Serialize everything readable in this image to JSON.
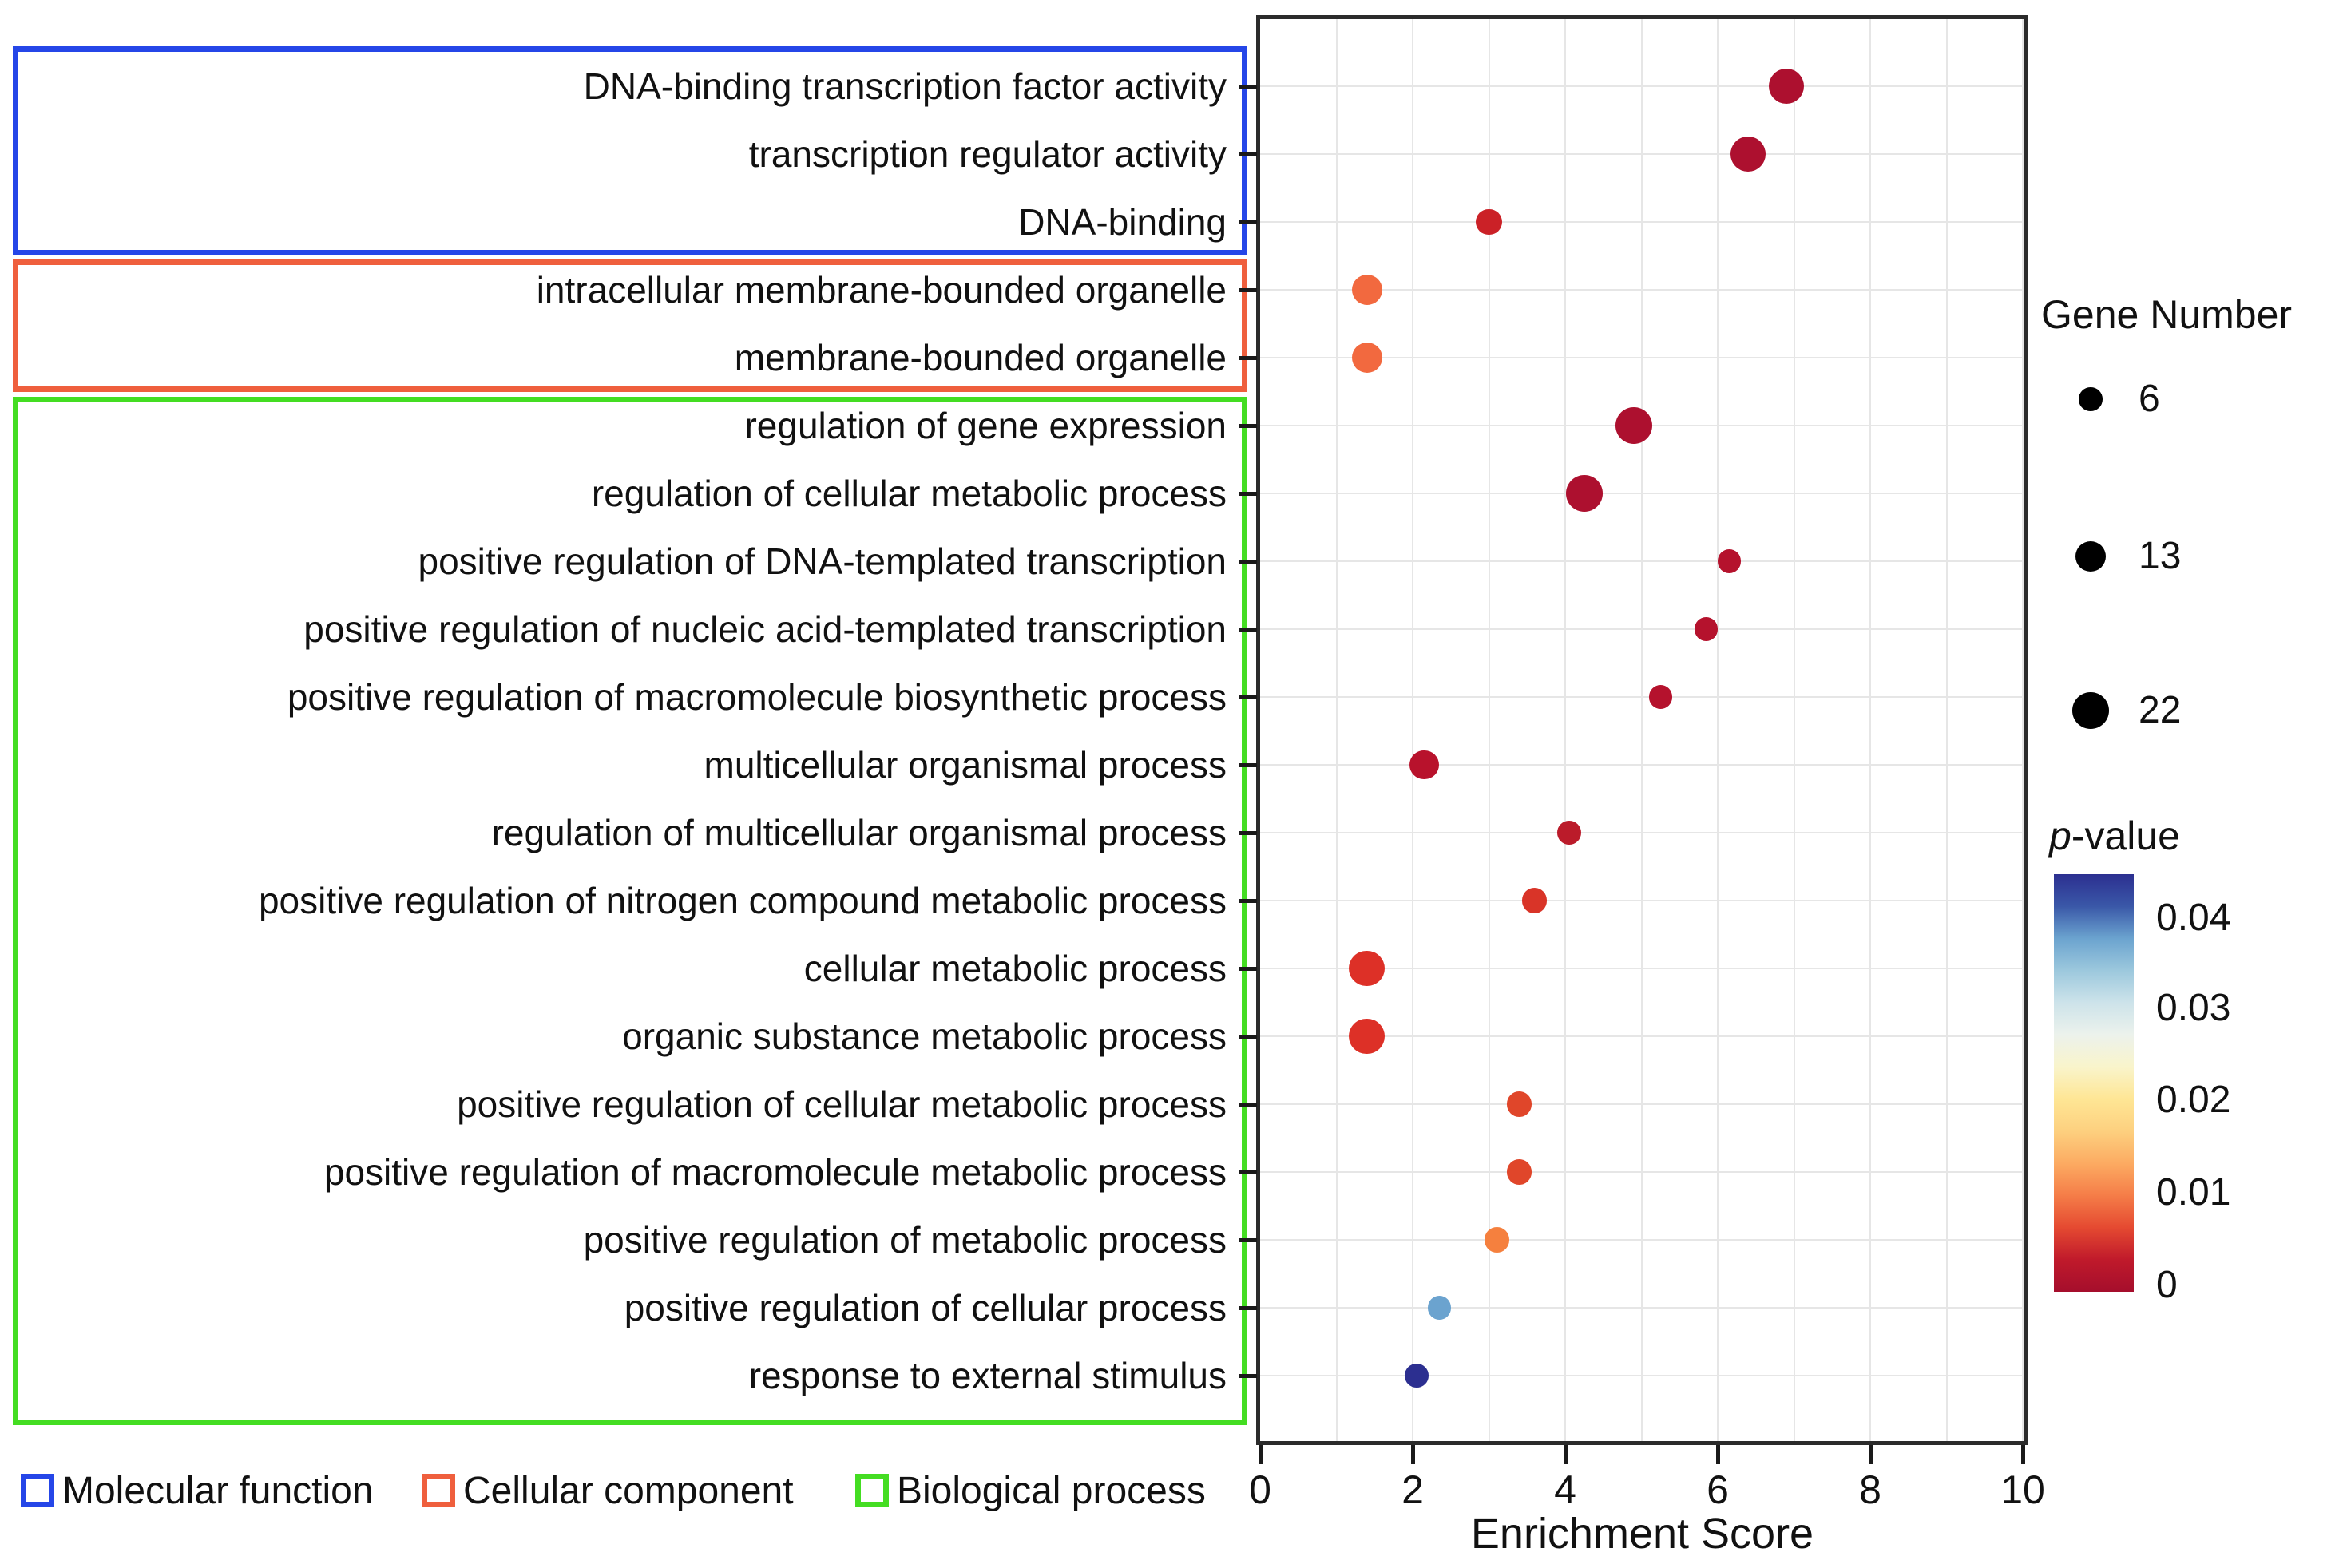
{
  "chart_data": {
    "type": "scatter",
    "xlabel": "Enrichment Score",
    "xlim": [
      0,
      10
    ],
    "xticks": [
      0,
      2,
      4,
      6,
      8,
      10
    ],
    "grid": true,
    "groups": [
      {
        "name": "Molecular function",
        "color": "#2546e8"
      },
      {
        "name": "Cellular component",
        "color": "#ef5f3d"
      },
      {
        "name": "Biological process",
        "color": "#44dd22"
      }
    ],
    "rows": [
      {
        "term": "DNA-binding transcription factor activity",
        "group": 0,
        "enrichment_score": 6.9,
        "gene_number": 20,
        "p_value": 0.0,
        "color": "#ad102f"
      },
      {
        "term": "transcription regulator activity",
        "group": 0,
        "enrichment_score": 6.4,
        "gene_number": 20,
        "p_value": 0.0,
        "color": "#ad102f"
      },
      {
        "term": "DNA-binding",
        "group": 0,
        "enrichment_score": 3.0,
        "gene_number": 8,
        "p_value": 0.004,
        "color": "#cb2127"
      },
      {
        "term": "intracellular membrane-bounded organelle",
        "group": 1,
        "enrichment_score": 1.4,
        "gene_number": 13,
        "p_value": 0.01,
        "color": "#f2693f"
      },
      {
        "term": "membrane-bounded organelle",
        "group": 1,
        "enrichment_score": 1.4,
        "gene_number": 13,
        "p_value": 0.01,
        "color": "#f2693f"
      },
      {
        "term": "regulation of gene expression",
        "group": 2,
        "enrichment_score": 4.9,
        "gene_number": 22,
        "p_value": 0.0,
        "color": "#ad102f"
      },
      {
        "term": "regulation of cellular metabolic process",
        "group": 2,
        "enrichment_score": 4.25,
        "gene_number": 22,
        "p_value": 0.0,
        "color": "#ad102f"
      },
      {
        "term": "positive regulation of DNA-templated transcription",
        "group": 2,
        "enrichment_score": 6.15,
        "gene_number": 6,
        "p_value": 0.001,
        "color": "#b5122d"
      },
      {
        "term": "positive regulation of nucleic acid-templated transcription",
        "group": 2,
        "enrichment_score": 5.85,
        "gene_number": 6,
        "p_value": 0.001,
        "color": "#b5122d"
      },
      {
        "term": "positive regulation of macromolecule biosynthetic process",
        "group": 2,
        "enrichment_score": 5.25,
        "gene_number": 6,
        "p_value": 0.001,
        "color": "#b5122d"
      },
      {
        "term": "multicellular organismal process",
        "group": 2,
        "enrichment_score": 2.15,
        "gene_number": 12,
        "p_value": 0.001,
        "color": "#b8122c"
      },
      {
        "term": "regulation of multicellular organismal process",
        "group": 2,
        "enrichment_score": 4.05,
        "gene_number": 6,
        "p_value": 0.002,
        "color": "#bb1b2a"
      },
      {
        "term": "positive regulation of nitrogen compound metabolic process",
        "group": 2,
        "enrichment_score": 3.6,
        "gene_number": 7,
        "p_value": 0.005,
        "color": "#d93428"
      },
      {
        "term": "cellular metabolic process",
        "group": 2,
        "enrichment_score": 1.4,
        "gene_number": 21,
        "p_value": 0.005,
        "color": "#dd3027"
      },
      {
        "term": "organic substance metabolic process",
        "group": 2,
        "enrichment_score": 1.4,
        "gene_number": 21,
        "p_value": 0.005,
        "color": "#dd3027"
      },
      {
        "term": "positive regulation of cellular metabolic process",
        "group": 2,
        "enrichment_score": 3.4,
        "gene_number": 7,
        "p_value": 0.006,
        "color": "#e0462a"
      },
      {
        "term": "positive regulation of macromolecule metabolic process",
        "group": 2,
        "enrichment_score": 3.4,
        "gene_number": 7,
        "p_value": 0.006,
        "color": "#e0462a"
      },
      {
        "term": "positive regulation of metabolic process",
        "group": 2,
        "enrichment_score": 3.1,
        "gene_number": 7,
        "p_value": 0.012,
        "color": "#f5803e"
      },
      {
        "term": "positive regulation of cellular process",
        "group": 2,
        "enrichment_score": 2.35,
        "gene_number": 6,
        "p_value": 0.033,
        "color": "#6ba3cf"
      },
      {
        "term": "response to external stimulus",
        "group": 2,
        "enrichment_score": 2.05,
        "gene_number": 6,
        "p_value": 0.042,
        "color": "#2c2f90"
      }
    ],
    "size_legend": {
      "title": "Gene Number",
      "entries": [
        {
          "gene_number": 6,
          "label": "6"
        },
        {
          "gene_number": 13,
          "label": "13"
        },
        {
          "gene_number": 22,
          "label": "22"
        }
      ]
    },
    "color_legend": {
      "title_italic": "p",
      "title_rest": "-value",
      "tick_labels": [
        "0.04",
        "0.03",
        "0.02",
        "0.01",
        "0"
      ],
      "colormap": "RdYlBu-reversed",
      "gradient_top_to_bottom": [
        "#2c2f90",
        "#3a58a8",
        "#6ba3cf",
        "#9cc8dd",
        "#cde3ea",
        "#ecf2ec",
        "#f9f4cb",
        "#fee695",
        "#fdd07f",
        "#fcab62",
        "#f57d48",
        "#e54a31",
        "#c01a2b",
        "#a50e2c"
      ]
    },
    "dot_border_color_plot": "#2b2b2b",
    "gridline_color": "#e6e6e6"
  }
}
